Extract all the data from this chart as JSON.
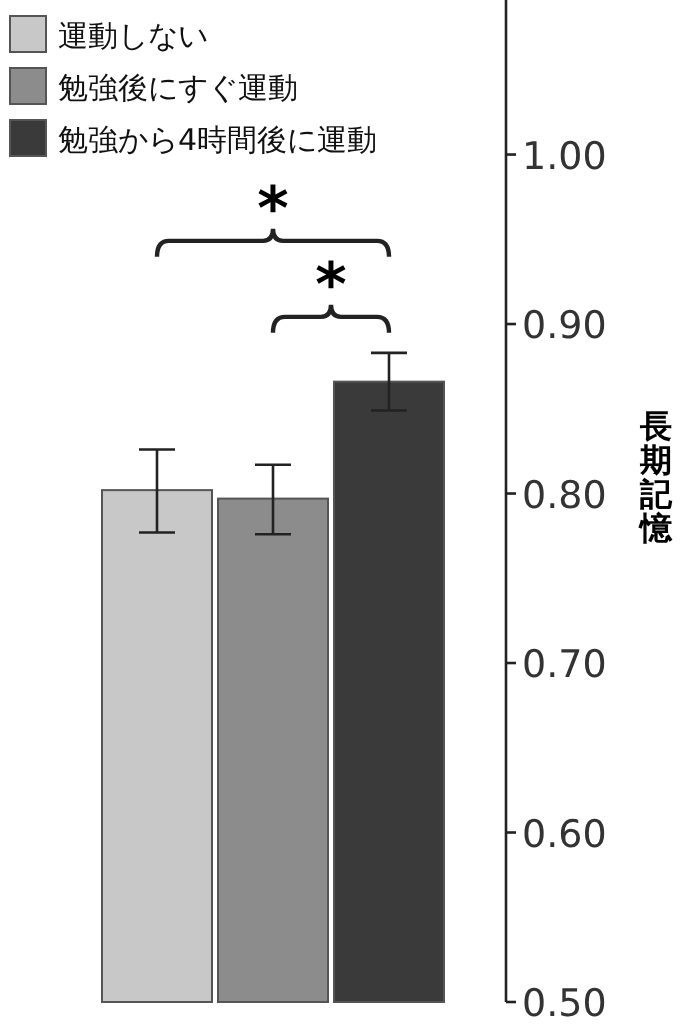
{
  "chart_data": {
    "type": "bar",
    "categories": [
      null
    ],
    "series": [
      {
        "name": "運動しない",
        "color": "#c8c8c8",
        "values": [
          0.802
        ],
        "errors": [
          [
            0.777,
            0.826
          ]
        ]
      },
      {
        "name": "勉強後にすぐ運動",
        "color": "#8c8c8c",
        "values": [
          0.797
        ],
        "errors": [
          [
            0.776,
            0.817
          ]
        ]
      },
      {
        "name": "勉強から4時間後に運動",
        "color": "#3a3a3a",
        "values": [
          0.866
        ],
        "errors": [
          [
            0.849,
            0.883
          ]
        ]
      }
    ],
    "ylim": [
      0.5,
      1.09
    ],
    "yticks": [
      {
        "value": 0.5,
        "label": "0.50"
      },
      {
        "value": 0.6,
        "label": "0.60"
      },
      {
        "value": 0.7,
        "label": "0.70"
      },
      {
        "value": 0.8,
        "label": "0.80"
      },
      {
        "value": 0.9,
        "label": "0.90"
      },
      {
        "value": 1.0,
        "label": "1.00"
      }
    ],
    "ylabel": "長期記憶",
    "legend": "top left",
    "grid": false,
    "annotations": [
      "*",
      "*"
    ]
  }
}
